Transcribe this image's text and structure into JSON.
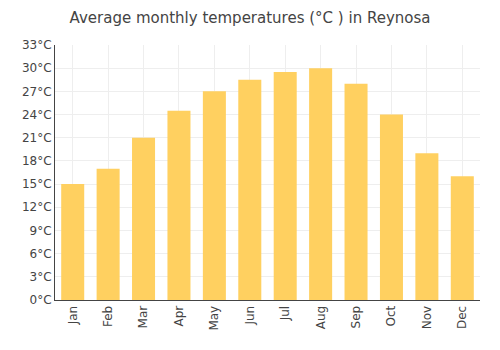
{
  "chart_data": {
    "type": "bar",
    "title": "Average monthly temperatures (°C ) in Reynosa",
    "categories": [
      "Jan",
      "Feb",
      "Mar",
      "Apr",
      "May",
      "Jun",
      "Jul",
      "Aug",
      "Sep",
      "Oct",
      "Nov",
      "Dec"
    ],
    "values": [
      15,
      17,
      21,
      24.5,
      27,
      28.5,
      29.5,
      30,
      28,
      24,
      19,
      16
    ],
    "color": "#FFD060",
    "ylim": [
      0,
      33
    ],
    "yticks": [
      {
        "value": 0,
        "label": "0°C"
      },
      {
        "value": 3,
        "label": "3°C"
      },
      {
        "value": 6,
        "label": "6°C"
      },
      {
        "value": 9,
        "label": "9°C"
      },
      {
        "value": 12,
        "label": "12°C"
      },
      {
        "value": 15,
        "label": "15°C"
      },
      {
        "value": 18,
        "label": "18°C"
      },
      {
        "value": 21,
        "label": "21°C"
      },
      {
        "value": 24,
        "label": "24°C"
      },
      {
        "value": 27,
        "label": "27°C"
      },
      {
        "value": 30,
        "label": "30°C"
      },
      {
        "value": 33,
        "label": "33°C"
      }
    ],
    "grid": true
  }
}
